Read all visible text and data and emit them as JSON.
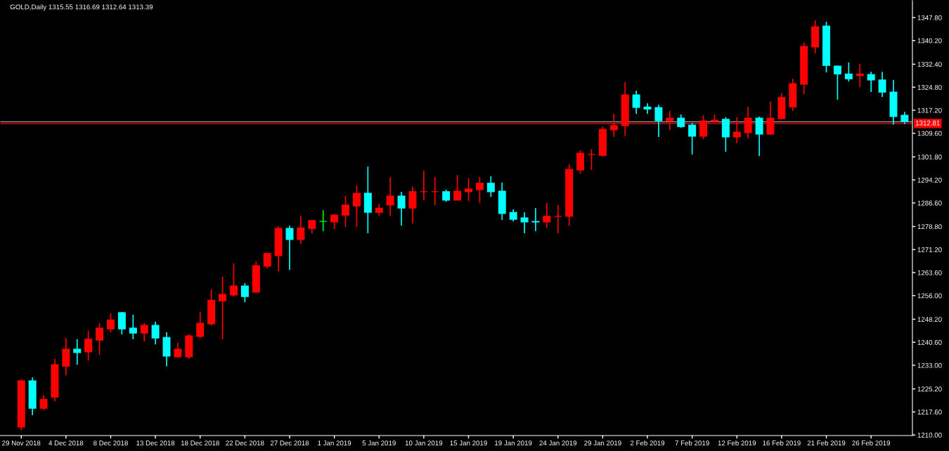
{
  "chart_data": {
    "type": "candlestick",
    "title": "GOLD,Daily 1315.55 1316.69 1312.64 1313.39",
    "categories": [
      "29 Nov 2018",
      null,
      null,
      null,
      "4 Dec 2018",
      null,
      null,
      null,
      "8 Dec 2018",
      null,
      null,
      null,
      "13 Dec 2018",
      null,
      null,
      null,
      "18 Dec 2018",
      null,
      null,
      null,
      "22 Dec 2018",
      null,
      null,
      null,
      "27 Dec 2018",
      null,
      null,
      null,
      "1 Jan 2019",
      null,
      null,
      null,
      "5 Jan 2019",
      null,
      null,
      null,
      "10 Jan 2019",
      null,
      null,
      null,
      "15 Jan 2019",
      null,
      null,
      null,
      "19 Jan 2019",
      null,
      null,
      null,
      "24 Jan 2019",
      null,
      null,
      null,
      "29 Jan 2019",
      null,
      null,
      null,
      "2 Feb 2019",
      null,
      null,
      null,
      "7 Feb 2019",
      null,
      null,
      null,
      "12 Feb 2019",
      null,
      null,
      null,
      "16 Feb 2019",
      null,
      null,
      null,
      "21 Feb 2019",
      null,
      null,
      null,
      "26 Feb 2019",
      null,
      null,
      null
    ],
    "ohlc": [
      [
        1212.6,
        1228.3,
        1211.6,
        1227.9
      ],
      [
        1227.9,
        1229.0,
        1216.5,
        1218.8
      ],
      [
        1218.8,
        1223.2,
        1218.1,
        1221.8
      ],
      [
        1222.5,
        1235.1,
        1221.1,
        1233.2
      ],
      [
        1232.7,
        1242.0,
        1229.7,
        1238.3
      ],
      [
        1238.3,
        1241.6,
        1233.2,
        1237.2
      ],
      [
        1237.4,
        1244.3,
        1234.6,
        1241.6
      ],
      [
        1241.3,
        1246.9,
        1236.5,
        1245.3
      ],
      [
        1245.0,
        1250.1,
        1243.9,
        1248.0
      ],
      [
        1250.4,
        1250.6,
        1243.2,
        1245.0
      ],
      [
        1245.3,
        1249.7,
        1241.6,
        1243.6
      ],
      [
        1243.6,
        1246.9,
        1240.9,
        1246.2
      ],
      [
        1246.2,
        1247.4,
        1239.9,
        1242.0
      ],
      [
        1242.2,
        1243.9,
        1232.7,
        1236.0
      ],
      [
        1235.8,
        1240.4,
        1235.5,
        1238.3
      ],
      [
        1235.8,
        1243.2,
        1235.1,
        1242.7
      ],
      [
        1242.5,
        1250.6,
        1242.0,
        1246.9
      ],
      [
        1246.7,
        1258.0,
        1246.2,
        1254.5
      ],
      [
        1254.3,
        1262.2,
        1241.6,
        1256.4
      ],
      [
        1256.2,
        1266.6,
        1255.7,
        1259.2
      ],
      [
        1259.2,
        1260.1,
        1253.8,
        1255.7
      ],
      [
        1257.1,
        1267.3,
        1257.1,
        1265.9
      ],
      [
        1265.7,
        1270.1,
        1265.0,
        1269.9
      ],
      [
        1269.2,
        1278.9,
        1264.1,
        1278.2
      ],
      [
        1278.2,
        1279.1,
        1264.5,
        1274.5
      ],
      [
        1274.5,
        1282.2,
        1273.1,
        1278.4
      ],
      [
        1278.2,
        1281.0,
        1276.6,
        1280.8
      ],
      [
        1280.5,
        1284.2,
        1277.3,
        1280.5
      ],
      [
        1280.3,
        1282.8,
        1278.0,
        1282.6
      ],
      [
        1282.6,
        1288.9,
        1278.7,
        1285.9
      ],
      [
        1285.6,
        1292.4,
        1278.7,
        1289.8
      ],
      [
        1289.8,
        1298.6,
        1276.6,
        1283.5
      ],
      [
        1283.5,
        1286.3,
        1282.4,
        1284.9
      ],
      [
        1285.9,
        1295.1,
        1282.4,
        1288.9
      ],
      [
        1288.9,
        1290.3,
        1279.1,
        1284.9
      ],
      [
        1284.9,
        1291.9,
        1279.8,
        1290.3
      ],
      [
        1290.3,
        1297.2,
        1287.5,
        1290.3
      ],
      [
        1290.3,
        1295.1,
        1285.9,
        1290.3
      ],
      [
        1290.3,
        1291.0,
        1287.0,
        1287.5
      ],
      [
        1287.5,
        1295.8,
        1287.5,
        1290.5
      ],
      [
        1290.3,
        1294.7,
        1287.3,
        1291.2
      ],
      [
        1291.0,
        1295.1,
        1286.6,
        1293.1
      ],
      [
        1293.1,
        1295.4,
        1288.6,
        1290.3
      ],
      [
        1290.5,
        1293.3,
        1281.0,
        1283.1
      ],
      [
        1283.5,
        1284.5,
        1280.5,
        1281.2
      ],
      [
        1281.7,
        1283.5,
        1276.6,
        1280.3
      ],
      [
        1280.5,
        1284.9,
        1277.3,
        1280.3
      ],
      [
        1280.3,
        1286.6,
        1278.4,
        1282.2
      ],
      [
        1282.2,
        1285.9,
        1276.6,
        1282.2
      ],
      [
        1282.2,
        1299.3,
        1279.1,
        1297.7
      ],
      [
        1297.5,
        1304.0,
        1296.3,
        1303.0
      ],
      [
        1302.6,
        1304.4,
        1297.5,
        1302.6
      ],
      [
        1302.3,
        1311.8,
        1301.9,
        1310.9
      ],
      [
        1310.7,
        1316.0,
        1308.4,
        1312.1
      ],
      [
        1312.1,
        1326.5,
        1308.8,
        1322.3
      ],
      [
        1322.3,
        1323.7,
        1316.0,
        1318.1
      ],
      [
        1318.3,
        1319.5,
        1316.0,
        1317.6
      ],
      [
        1318.1,
        1319.0,
        1308.4,
        1313.7
      ],
      [
        1313.7,
        1317.0,
        1310.7,
        1314.6
      ],
      [
        1314.6,
        1315.8,
        1311.4,
        1311.8
      ],
      [
        1312.3,
        1313.0,
        1302.6,
        1308.6
      ],
      [
        1308.6,
        1315.6,
        1307.7,
        1313.7
      ],
      [
        1313.5,
        1315.8,
        1313.2,
        1313.9
      ],
      [
        1314.2,
        1314.9,
        1303.5,
        1308.4
      ],
      [
        1308.4,
        1314.9,
        1306.3,
        1310.0
      ],
      [
        1309.8,
        1318.3,
        1307.9,
        1314.6
      ],
      [
        1314.6,
        1315.1,
        1302.1,
        1309.3
      ],
      [
        1309.3,
        1320.0,
        1309.1,
        1314.6
      ],
      [
        1314.4,
        1322.8,
        1314.2,
        1321.4
      ],
      [
        1318.3,
        1327.6,
        1317.0,
        1326.0
      ],
      [
        1325.8,
        1339.5,
        1322.5,
        1338.3
      ],
      [
        1338.1,
        1346.9,
        1336.0,
        1344.8
      ],
      [
        1345.0,
        1346.4,
        1329.7,
        1332.0
      ],
      [
        1331.8,
        1332.0,
        1320.7,
        1329.2
      ],
      [
        1329.2,
        1333.0,
        1326.7,
        1327.6
      ],
      [
        1328.6,
        1332.5,
        1324.8,
        1329.2
      ],
      [
        1329.0,
        1329.9,
        1323.2,
        1327.2
      ],
      [
        1327.2,
        1329.9,
        1321.6,
        1323.2
      ],
      [
        1323.2,
        1327.2,
        1312.5,
        1315.1
      ],
      [
        1315.55,
        1316.69,
        1312.64,
        1313.39
      ]
    ],
    "colors": [
      "#ff0000",
      "#00ffff",
      "#ff0000",
      "#ff0000",
      "#ff0000",
      "#00ffff",
      "#ff0000",
      "#ff0000",
      "#ff0000",
      "#00ffff",
      "#00ffff",
      "#ff0000",
      "#00ffff",
      "#00ffff",
      "#ff0000",
      "#ff0000",
      "#ff0000",
      "#ff0000",
      "#ff0000",
      "#ff0000",
      "#00ffff",
      "#ff0000",
      "#ff0000",
      "#ff0000",
      "#00ffff",
      "#ff0000",
      "#ff0000",
      "#00ff00",
      "#ff0000",
      "#ff0000",
      "#ff0000",
      "#00ffff",
      "#ff0000",
      "#ff0000",
      "#00ffff",
      "#ff0000",
      "#ff0000",
      "#ff0000",
      "#00ffff",
      "#ff0000",
      "#ff0000",
      "#ff0000",
      "#00ffff",
      "#00ffff",
      "#00ffff",
      "#00ffff",
      "#00ffff",
      "#ff0000",
      "#ff0000",
      "#ff0000",
      "#ff0000",
      "#ff0000",
      "#ff0000",
      "#ff0000",
      "#ff0000",
      "#00ffff",
      "#00ffff",
      "#00ffff",
      "#ff0000",
      "#00ffff",
      "#00ffff",
      "#ff0000",
      "#ff0000",
      "#00ffff",
      "#ff0000",
      "#ff0000",
      "#00ffff",
      "#ff0000",
      "#ff0000",
      "#ff0000",
      "#ff0000",
      "#ff0000",
      "#00ffff",
      "#00ffff",
      "#00ffff",
      "#ff0000",
      "#00ffff",
      "#00ffff",
      "#00ffff",
      "#00ffff"
    ],
    "ylim": [
      1209.8,
      1353.6
    ],
    "yticks": [
      {
        "value": 1210.0,
        "label": "1210.00"
      },
      {
        "value": 1217.6,
        "label": "1217.60"
      },
      {
        "value": 1225.2,
        "label": "1225.20"
      },
      {
        "value": 1233.0,
        "label": "1233.00"
      },
      {
        "value": 1240.6,
        "label": "1240.60"
      },
      {
        "value": 1248.2,
        "label": "1248.20"
      },
      {
        "value": 1256.0,
        "label": "1256.00"
      },
      {
        "value": 1263.6,
        "label": "1263.60"
      },
      {
        "value": 1271.2,
        "label": "1271.20"
      },
      {
        "value": 1278.8,
        "label": "1278.80"
      },
      {
        "value": 1286.6,
        "label": "1286.60"
      },
      {
        "value": 1294.2,
        "label": "1294.20"
      },
      {
        "value": 1301.8,
        "label": "1301.80"
      },
      {
        "value": 1309.6,
        "label": "1309.60"
      },
      {
        "value": 1317.2,
        "label": "1317.20"
      },
      {
        "value": 1324.8,
        "label": "1324.80"
      },
      {
        "value": 1332.4,
        "label": "1332.40"
      },
      {
        "value": 1340.2,
        "label": "1340.20"
      },
      {
        "value": 1347.8,
        "label": "1347.80"
      }
    ],
    "ref_lines": [
      {
        "axis": "y",
        "value": 1313.39,
        "color": "#a0a0a0"
      },
      {
        "axis": "y",
        "value": 1312.81,
        "label": "1312.81",
        "color": "#ff0000"
      }
    ],
    "grid": false,
    "legend": false
  }
}
